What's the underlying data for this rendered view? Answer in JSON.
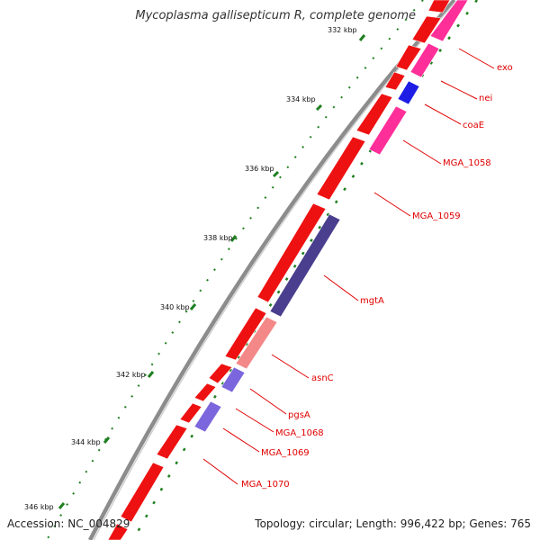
{
  "title": "Mycoplasma gallisepticum R, complete genome",
  "accession": "Accession: NC_004829",
  "topology": "Topology: circular; Length: 996,422 bp; Genes: 765",
  "kbp_labels": [
    "332 kbp",
    "334 kbp",
    "336 kbp",
    "338 kbp",
    "340 kbp",
    "342 kbp",
    "344 kbp",
    "346 kbp"
  ],
  "gene_labels": [
    "exo",
    "nei",
    "coaE",
    "MGA_1058",
    "MGA_1059",
    "mgtA",
    "asnC",
    "pgsA",
    "MGA_1068",
    "MGA_1069",
    "MGA_1070"
  ],
  "colors": {
    "backbone": "#8c8c8c",
    "forward_cds": "#ee1111",
    "reverse_cds_pink": "#ff2f9a",
    "reverse_cds_blue": "#1d1de6",
    "reverse_cds_navy": "#4a3f8e",
    "reverse_cds_salmon": "#f48888",
    "reverse_cds_lavender": "#7b66dd",
    "tick_green": "#1f7f1f",
    "label_red": "#e00000"
  }
}
